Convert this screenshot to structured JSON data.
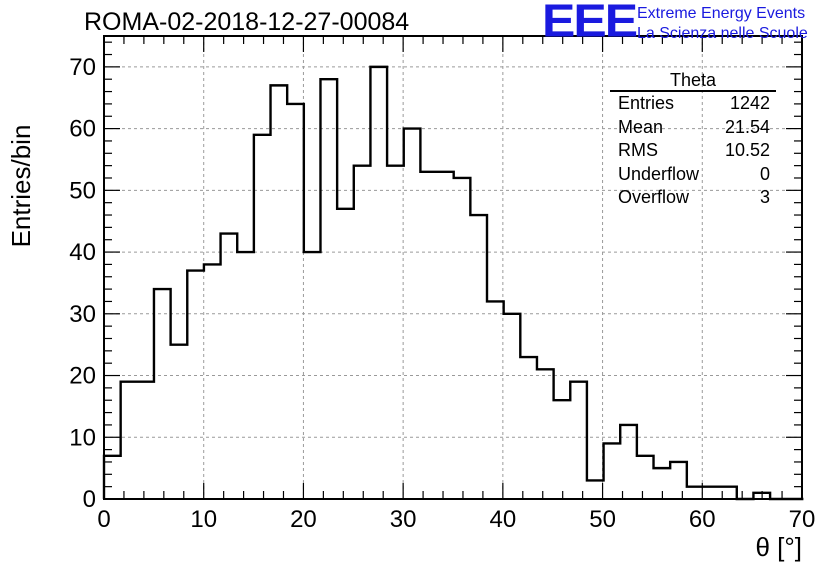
{
  "header": {
    "title": "ROMA-02-2018-12-27-00084"
  },
  "logo": {
    "mark": "EEE",
    "line1": "Extreme Energy Events",
    "line2": "La Scienza nelle Scuole",
    "color": "#1a1adf"
  },
  "stats": {
    "name": "Theta",
    "rows": [
      {
        "label": "Entries",
        "value": "1242"
      },
      {
        "label": "Mean",
        "value": "21.54"
      },
      {
        "label": "RMS",
        "value": "10.52"
      },
      {
        "label": "Underflow",
        "value": "0"
      },
      {
        "label": "Overflow",
        "value": "3"
      }
    ]
  },
  "chart_data": {
    "type": "bar",
    "subtype": "histogram-step",
    "title": "ROMA-02-2018-12-27-00084",
    "xlabel": "θ [°]",
    "ylabel": "Entries/bin",
    "xlim": [
      0,
      70
    ],
    "ylim": [
      0,
      75
    ],
    "grid": true,
    "bin_width": 1.67,
    "x_ticks": [
      0,
      10,
      20,
      30,
      40,
      50,
      60,
      70
    ],
    "y_ticks": [
      0,
      10,
      20,
      30,
      40,
      50,
      60,
      70
    ],
    "bin_edges_start": 0,
    "values": [
      7,
      19,
      19,
      34,
      25,
      37,
      38,
      43,
      40,
      59,
      67,
      64,
      40,
      68,
      47,
      54,
      70,
      54,
      60,
      53,
      53,
      52,
      46,
      32,
      30,
      23,
      21,
      16,
      19,
      3,
      9,
      12,
      7,
      5,
      6,
      2,
      2,
      2,
      0,
      1,
      0,
      0
    ],
    "line_color": "#000000"
  }
}
